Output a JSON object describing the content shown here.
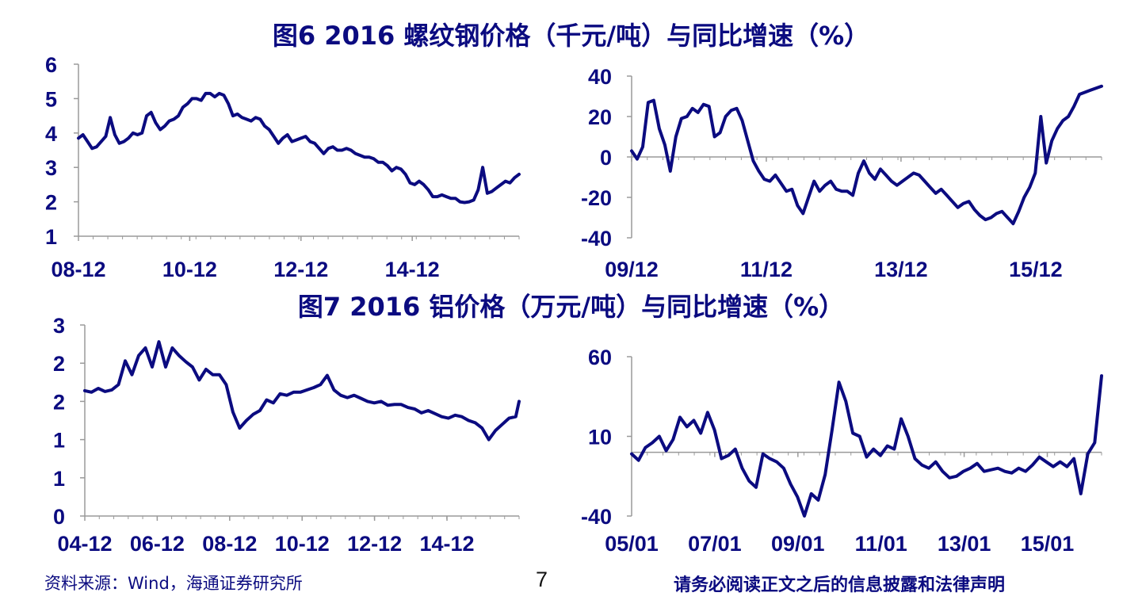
{
  "titles": {
    "fig6": "图6 2016 螺纹钢价格（千元/吨）与同比增速（%）",
    "fig7": "图7 2016 铝价格（万元/吨）与同比增速（%）"
  },
  "footer": {
    "source": "资料来源：Wind，海通证券研究所",
    "page": "7",
    "disclaimer": "请务必阅读正文之后的信息披露和法律声明"
  },
  "colors": {
    "line": "#0b0b80",
    "axis": "#9a9a9a",
    "text": "#0b0b80"
  },
  "chart_data": [
    {
      "id": "rebar-price",
      "type": "line",
      "title": "",
      "xlabel": "",
      "ylabel": "",
      "ylim": [
        1,
        6
      ],
      "yticks": [
        "6",
        "5",
        "4",
        "3",
        "2",
        "1"
      ],
      "xticks": [
        "08-12",
        "10-12",
        "12-12",
        "14-12"
      ],
      "xlim": [
        0,
        97
      ],
      "grid": false,
      "series": [
        {
          "x": [
            0,
            1,
            2,
            3,
            4,
            5,
            6,
            7,
            8,
            9,
            10,
            11,
            12,
            13,
            14,
            15,
            16,
            17,
            18,
            19,
            20,
            21,
            22,
            23,
            24,
            25,
            26,
            27,
            28,
            29,
            30,
            31,
            32,
            33,
            34,
            35,
            36,
            37,
            38,
            39,
            40,
            41,
            42,
            43,
            44,
            45,
            46,
            47,
            48,
            49,
            50,
            51,
            52,
            53,
            54,
            55,
            56,
            57,
            58,
            59,
            60,
            61,
            62,
            63,
            64,
            65,
            66,
            67,
            68,
            69,
            70,
            71,
            72,
            73,
            74,
            75,
            76,
            77,
            78,
            79,
            80,
            81,
            82,
            83,
            84,
            85,
            86,
            87,
            88,
            89,
            90,
            91,
            92,
            93,
            94,
            95,
            96,
            97
          ],
          "values": [
            3.85,
            3.95,
            3.75,
            3.55,
            3.6,
            3.75,
            3.9,
            4.45,
            3.95,
            3.7,
            3.75,
            3.85,
            4.0,
            3.95,
            4.0,
            4.5,
            4.6,
            4.3,
            4.1,
            4.2,
            4.35,
            4.4,
            4.5,
            4.75,
            4.85,
            5.0,
            5.0,
            4.95,
            5.15,
            5.15,
            5.05,
            5.15,
            5.1,
            4.85,
            4.5,
            4.55,
            4.45,
            4.4,
            4.35,
            4.45,
            4.4,
            4.2,
            4.1,
            3.9,
            3.7,
            3.85,
            3.95,
            3.75,
            3.8,
            3.85,
            3.9,
            3.75,
            3.7,
            3.55,
            3.4,
            3.55,
            3.6,
            3.5,
            3.5,
            3.55,
            3.5,
            3.4,
            3.35,
            3.3,
            3.3,
            3.25,
            3.15,
            3.15,
            3.05,
            2.9,
            3.0,
            2.95,
            2.8,
            2.55,
            2.5,
            2.6,
            2.5,
            2.35,
            2.15,
            2.15,
            2.2,
            2.15,
            2.1,
            2.1,
            2.0,
            1.98,
            2.0,
            2.05,
            2.35,
            3.0,
            2.25,
            2.3,
            2.4,
            2.5,
            2.6,
            2.55,
            2.7,
            2.8
          ]
        }
      ]
    },
    {
      "id": "rebar-yoy",
      "type": "line",
      "title": "",
      "xlabel": "",
      "ylabel": "",
      "ylim": [
        -40,
        40
      ],
      "yticks": [
        "40",
        "20",
        "0",
        "-20",
        "-40"
      ],
      "xticks": [
        "09/12",
        "11/12",
        "13/12",
        "15/12"
      ],
      "xlim": [
        0,
        85
      ],
      "grid": false,
      "zero_line": true,
      "series": [
        {
          "x": [
            0,
            1,
            2,
            3,
            4,
            5,
            6,
            7,
            8,
            9,
            10,
            11,
            12,
            13,
            14,
            15,
            16,
            17,
            18,
            19,
            20,
            21,
            22,
            23,
            24,
            25,
            26,
            27,
            28,
            29,
            30,
            31,
            32,
            33,
            34,
            35,
            36,
            37,
            38,
            39,
            40,
            41,
            42,
            43,
            44,
            45,
            46,
            47,
            48,
            49,
            50,
            51,
            52,
            53,
            54,
            55,
            56,
            57,
            58,
            59,
            60,
            61,
            62,
            63,
            64,
            65,
            66,
            67,
            68,
            69,
            70,
            71,
            72,
            73,
            74,
            75,
            76,
            77,
            78,
            79,
            80,
            81,
            82,
            83,
            84,
            85
          ],
          "values": [
            3,
            -1,
            5,
            27,
            28,
            14,
            6,
            -7,
            10,
            19,
            20,
            24,
            22,
            26,
            25,
            10,
            12,
            20,
            23,
            24,
            18,
            8,
            -2,
            -7,
            -11,
            -12,
            -9,
            -13,
            -17,
            -16,
            -24,
            -28,
            -20,
            -12,
            -17,
            -14,
            -12,
            -16,
            -17,
            -17,
            -19,
            -8,
            -2,
            -8,
            -11,
            -6,
            -9,
            -12,
            -14,
            -12,
            -10,
            -8,
            -9,
            -12,
            -15,
            -18,
            -16,
            -19,
            -22,
            -25,
            -23,
            -22,
            -26,
            -29,
            -31,
            -30,
            -28,
            -27,
            -30,
            -33,
            -27,
            -20,
            -15,
            -8,
            20,
            -3,
            8,
            14,
            18,
            20,
            25,
            31,
            32,
            33,
            34,
            35
          ]
        }
      ]
    },
    {
      "id": "aluminum-price",
      "type": "line",
      "title": "",
      "xlabel": "",
      "ylabel": "",
      "ylim": [
        0,
        2.5
      ],
      "yticks": [
        "3",
        "2",
        "2",
        "1",
        "1",
        "0"
      ],
      "xticks": [
        "04-12",
        "06-12",
        "08-12",
        "10-12",
        "12-12",
        "14-12"
      ],
      "xlim": [
        0,
        129
      ],
      "grid": false,
      "series": [
        {
          "x": [
            0,
            2,
            4,
            6,
            8,
            10,
            12,
            14,
            16,
            18,
            20,
            22,
            24,
            26,
            28,
            30,
            32,
            34,
            36,
            38,
            40,
            42,
            44,
            46,
            48,
            50,
            52,
            54,
            56,
            58,
            60,
            62,
            64,
            66,
            68,
            70,
            72,
            74,
            76,
            78,
            80,
            82,
            84,
            86,
            88,
            90,
            92,
            94,
            96,
            98,
            100,
            102,
            104,
            106,
            108,
            110,
            112,
            114,
            116,
            118,
            120,
            122,
            124,
            126,
            128,
            129
          ],
          "values": [
            1.64,
            1.62,
            1.67,
            1.63,
            1.65,
            1.72,
            2.03,
            1.85,
            2.1,
            2.2,
            1.95,
            2.28,
            1.95,
            2.2,
            2.1,
            2.02,
            1.95,
            1.78,
            1.92,
            1.85,
            1.85,
            1.72,
            1.36,
            1.15,
            1.25,
            1.33,
            1.38,
            1.52,
            1.48,
            1.6,
            1.58,
            1.62,
            1.62,
            1.65,
            1.68,
            1.72,
            1.84,
            1.65,
            1.58,
            1.55,
            1.58,
            1.54,
            1.5,
            1.48,
            1.5,
            1.45,
            1.46,
            1.46,
            1.42,
            1.4,
            1.35,
            1.38,
            1.34,
            1.3,
            1.28,
            1.32,
            1.3,
            1.25,
            1.22,
            1.15,
            1.0,
            1.12,
            1.2,
            1.28,
            1.3,
            1.5
          ]
        }
      ]
    },
    {
      "id": "aluminum-yoy",
      "type": "line",
      "title": "",
      "xlabel": "",
      "ylabel": "",
      "ylim": [
        -40,
        60
      ],
      "yticks": [
        "60",
        "10",
        "-40"
      ],
      "xticks": [
        "05/01",
        "07/01",
        "09/01",
        "11/01",
        "13/01",
        "15/01"
      ],
      "xlim": [
        0,
        136
      ],
      "grid": false,
      "zero_line": true,
      "series": [
        {
          "x": [
            0,
            2,
            4,
            6,
            8,
            10,
            12,
            14,
            16,
            18,
            20,
            22,
            24,
            26,
            28,
            30,
            32,
            34,
            36,
            38,
            40,
            42,
            44,
            46,
            48,
            50,
            52,
            54,
            56,
            58,
            60,
            62,
            64,
            66,
            68,
            70,
            72,
            74,
            76,
            78,
            80,
            82,
            84,
            86,
            88,
            90,
            92,
            94,
            96,
            98,
            100,
            102,
            104,
            106,
            108,
            110,
            112,
            114,
            116,
            118,
            120,
            122,
            124,
            126,
            128,
            130,
            132,
            134,
            136
          ],
          "values": [
            -1,
            -5,
            3,
            6,
            10,
            1,
            8,
            22,
            16,
            20,
            12,
            25,
            14,
            -4,
            -2,
            2,
            -10,
            -18,
            -22,
            -1,
            -4,
            -6,
            -10,
            -20,
            -28,
            -40,
            -26,
            -30,
            -14,
            14,
            44,
            32,
            12,
            10,
            -3,
            2,
            -2,
            4,
            2,
            21,
            10,
            -4,
            -8,
            -10,
            -6,
            -12,
            -16,
            -15,
            -12,
            -10,
            -7,
            -12,
            -11,
            -10,
            -12,
            -13,
            -10,
            -12,
            -8,
            -3,
            -6,
            -9,
            -6,
            -9,
            -4,
            -26,
            -1,
            6,
            48
          ]
        }
      ]
    }
  ]
}
